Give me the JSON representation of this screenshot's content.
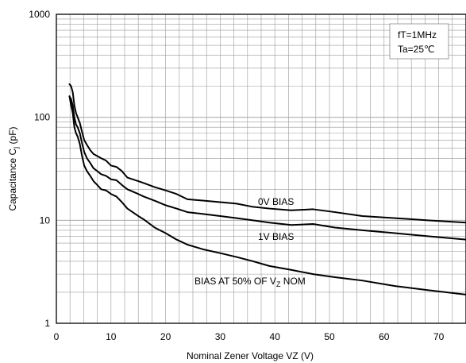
{
  "chart_data": {
    "type": "line",
    "title": "",
    "xlabel": "Nominal Zener Voltage VZ (V)",
    "ylabel_main": "Capacitance C",
    "ylabel_sub": "j",
    "ylabel_unit": " (pF)",
    "xlim": [
      0,
      75
    ],
    "ylim": [
      1,
      1000
    ],
    "y_scale": "log",
    "grid": true,
    "x_ticks": [
      0,
      10,
      20,
      30,
      40,
      50,
      60,
      70
    ],
    "x_tick_labels": [
      "0",
      "10",
      "20",
      "30",
      "40",
      "50",
      "60",
      "70"
    ],
    "y_ticks": [
      1,
      10,
      100,
      1000
    ],
    "y_tick_labels": [
      "1",
      "10",
      "100",
      "1000"
    ],
    "annotations": {
      "line1": "fT=1MHz",
      "line2": "Ta=25℃"
    },
    "series": [
      {
        "name": "0V  BIAS",
        "x": [
          2.4,
          2.7,
          3.0,
          3.3,
          3.6,
          3.9,
          4.3,
          4.7,
          5.1,
          5.6,
          6.2,
          6.8,
          7.5,
          8.2,
          9.1,
          10,
          11,
          12,
          13,
          15,
          16,
          18,
          20,
          22,
          24,
          27,
          30,
          33,
          36,
          39,
          43,
          47,
          51,
          56,
          62,
          68,
          75
        ],
        "values": [
          210,
          200,
          175,
          130,
          110,
          100,
          88,
          72,
          60,
          54,
          48,
          44,
          42,
          40,
          38,
          34,
          33,
          30,
          26,
          24,
          23,
          21,
          19.5,
          18,
          16,
          15.5,
          15,
          14.5,
          13.5,
          13,
          12.5,
          12.8,
          12,
          11,
          10.5,
          10,
          9.5
        ]
      },
      {
        "name": "1V  BIAS",
        "x": [
          2.4,
          2.7,
          3.0,
          3.3,
          3.6,
          3.9,
          4.3,
          4.7,
          5.1,
          5.6,
          6.2,
          6.8,
          7.5,
          8.2,
          9.1,
          10,
          11,
          12,
          13,
          15,
          16,
          18,
          20,
          22,
          24,
          27,
          30,
          33,
          36,
          39,
          43,
          47,
          51,
          56,
          62,
          68,
          75
        ],
        "values": [
          160,
          150,
          130,
          100,
          85,
          80,
          70,
          56,
          46,
          40,
          36,
          32,
          30,
          28,
          27,
          25,
          24.5,
          22,
          20,
          18,
          17,
          15.5,
          14,
          13,
          12,
          11.5,
          11,
          10.5,
          10,
          9.5,
          9,
          9.2,
          8.5,
          8,
          7.5,
          7,
          6.5
        ]
      },
      {
        "name": "BIAS AT 50% OF V",
        "x": [
          2.4,
          2.7,
          3.0,
          3.3,
          3.6,
          3.9,
          4.3,
          4.7,
          5.1,
          5.6,
          6.2,
          6.8,
          7.5,
          8.2,
          9.1,
          10,
          11,
          12,
          13,
          15,
          16,
          18,
          20,
          22,
          24,
          27,
          30,
          33,
          36,
          39,
          43,
          47,
          51,
          56,
          62,
          68,
          75
        ],
        "values": [
          160,
          130,
          110,
          80,
          70,
          65,
          55,
          42,
          34,
          30,
          27,
          24,
          22,
          20,
          19.5,
          18,
          17,
          15,
          13,
          11,
          10.2,
          8.5,
          7.5,
          6.5,
          5.8,
          5.2,
          4.8,
          4.4,
          4,
          3.6,
          3.3,
          3,
          2.8,
          2.6,
          2.3,
          2.1,
          1.9
        ]
      }
    ],
    "series_labels": {
      "s0": "0V  BIAS",
      "s1": "1V  BIAS",
      "s2_main": "BIAS AT 50% OF V",
      "s2_sub": "Z",
      "s2_end": " NOM"
    },
    "colors": {
      "line": "#000000",
      "grid": "#9a9a9a",
      "frame": "#000000"
    }
  }
}
